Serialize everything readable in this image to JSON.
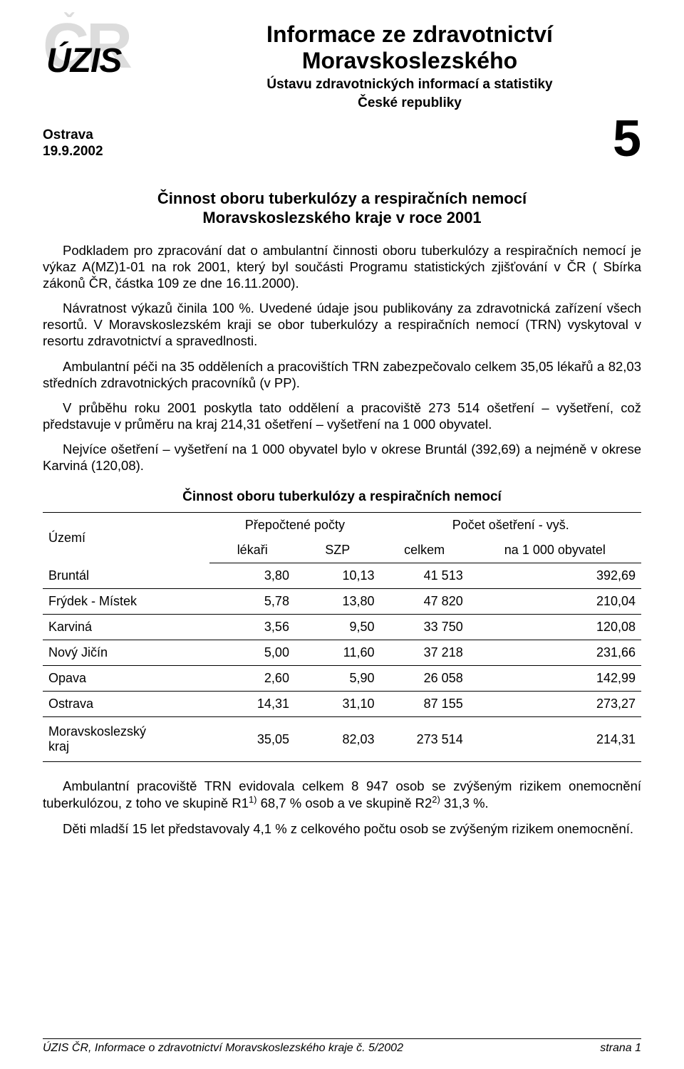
{
  "logo": {
    "bg_text": "CR",
    "fg_text": "ÚZIS"
  },
  "header": {
    "title_line1": "Informace ze zdravotnictví",
    "title_line2": "Moravskoslezského",
    "subtitle_line1": "Ústavu zdravotnických informací a statistiky",
    "subtitle_line2": "České republiky"
  },
  "meta": {
    "place": "Ostrava",
    "date": "19.9.2002",
    "issue": "5"
  },
  "doc_title_line1": "Činnost oboru tuberkulózy a respiračních nemocí",
  "doc_title_line2": "Moravskoslezského kraje v roce 2001",
  "paragraphs": {
    "p1": "Podkladem pro zpracování dat o ambulantní činnosti oboru tuberkulózy a respiračních nemocí je výkaz A(MZ)1-01 na rok 2001, který byl součásti Programu statistických zjišťování v ČR ( Sbírka zákonů ČR, částka 109 ze dne 16.11.2000).",
    "p2": "Návratnost výkazů činila 100 %. Uvedené údaje jsou publikovány za zdravotnická zařízení všech resortů. V Moravskoslezském kraji se obor tuberkulózy a respiračních nemocí (TRN) vyskytoval v resortu zdravotnictví a spravedlnosti.",
    "p3": "Ambulantní péči na 35 odděleních a pracovištích TRN zabezpečovalo celkem 35,05 lékařů a 82,03 středních zdravotnických pracovníků (v PP).",
    "p4": "V průběhu roku 2001 poskytla tato oddělení a pracoviště 273 514 ošetření – vyšetření, což představuje v průměru na kraj 214,31 ošetření – vyšetření na 1 000 obyvatel.",
    "p5": "Nejvíce ošetření – vyšetření na 1 000 obyvatel bylo v okrese Bruntál (392,69) a nejméně v okrese Karviná (120,08)."
  },
  "table": {
    "title": "Činnost oboru tuberkulózy a respiračních nemocí",
    "head_group1": "Přepočtené počty",
    "head_group2": "Počet ošetření - vyš.",
    "row_label": "Území",
    "col1": "lékaři",
    "col2": "SZP",
    "col3": "celkem",
    "col4": "na 1 000 obyvatel",
    "rows": [
      {
        "name": "Bruntál",
        "c1": "3,80",
        "c2": "10,13",
        "c3": "41 513",
        "c4": "392,69"
      },
      {
        "name": "Frýdek - Místek",
        "c1": "5,78",
        "c2": "13,80",
        "c3": "47 820",
        "c4": "210,04"
      },
      {
        "name": "Karviná",
        "c1": "3,56",
        "c2": "9,50",
        "c3": "33 750",
        "c4": "120,08"
      },
      {
        "name": "Nový Jičín",
        "c1": "5,00",
        "c2": "11,60",
        "c3": "37 218",
        "c4": "231,66"
      },
      {
        "name": "Opava",
        "c1": "2,60",
        "c2": "5,90",
        "c3": "26 058",
        "c4": "142,99"
      },
      {
        "name": "Ostrava",
        "c1": "14,31",
        "c2": "31,10",
        "c3": "87 155",
        "c4": "273,27"
      }
    ],
    "sum": {
      "name_l1": "Moravskoslezský",
      "name_l2": "kraj",
      "c1": "35,05",
      "c2": "82,03",
      "c3": "273 514",
      "c4": "214,31"
    }
  },
  "after_table": {
    "p6a": "Ambulantní pracoviště TRN evidovala celkem 8 947 osob se zvýšeným rizikem onemocnění tuberkulózou, z toho ve skupině R1",
    "p6b": " 68,7 % osob a ve skupině R2",
    "p6c": " 31,3 %.",
    "sup1": "1)",
    "sup2": "2)",
    "p7": "Děti mladší 15 let představovaly 4,1 % z celkového počtu osob se zvýšeným rizikem onemocnění."
  },
  "footer": {
    "left": "ÚZIS ČR, Informace o zdravotnictví Moravskoslezského kraje č. 5/2002",
    "right": "strana 1"
  }
}
